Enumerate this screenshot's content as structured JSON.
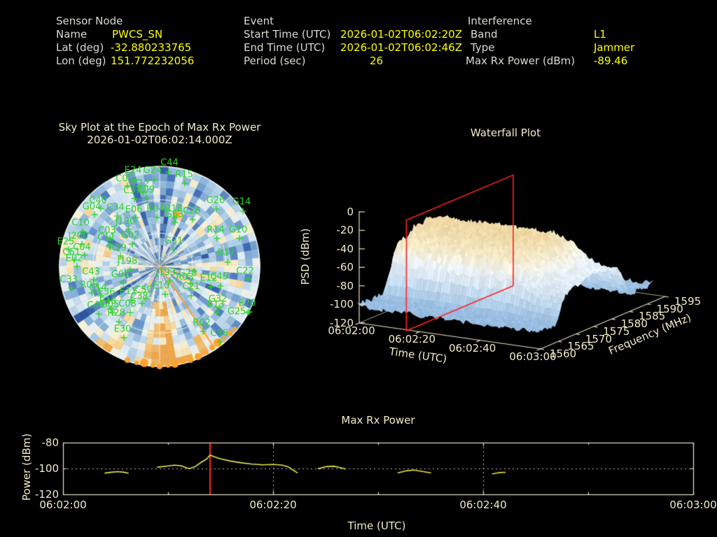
{
  "header": {
    "sensor": {
      "title": "Sensor Node",
      "rows": [
        {
          "label": "Name",
          "value": "PWCS_SN"
        },
        {
          "label": "Lat (deg)",
          "value": "-32.880233765"
        },
        {
          "label": "Lon (deg)",
          "value": "151.772232056"
        }
      ]
    },
    "event": {
      "title": "Event",
      "rows": [
        {
          "label": "Start Time (UTC)",
          "value": "2026-01-02T06:02:20Z"
        },
        {
          "label": "End Time (UTC)",
          "value": "2026-01-02T06:02:46Z"
        },
        {
          "label": "Period (sec)",
          "value": "26"
        }
      ]
    },
    "interference": {
      "title": "Interference",
      "rows": [
        {
          "label": "Band",
          "value": "L1"
        },
        {
          "label": "Type",
          "value": "Jammer"
        },
        {
          "label": "Max Rx Power (dBm)",
          "value": "-89.46"
        }
      ]
    }
  },
  "colors": {
    "background": "#000000",
    "header_label": "#dcdad0",
    "value_yellow": "#ffff00",
    "cream_text": "#f1ecca",
    "satellite_green": "#2ed32e",
    "orange_marker": "#ffa32a",
    "bearing_orange": "#f5a030",
    "event_red": "#ff2222",
    "trace_yellow": "#e6e64c",
    "grid_dotted": "#d8d8d8",
    "frame_cream": "#e9e5c9",
    "sky_palette": [
      [
        0,
        "#2f55a0"
      ],
      [
        0.12,
        "#4470b8"
      ],
      [
        0.25,
        "#6f9ccd"
      ],
      [
        0.38,
        "#9abfe0"
      ],
      [
        0.5,
        "#c6dcee"
      ],
      [
        0.6,
        "#e3eef5"
      ],
      [
        0.7,
        "#f6f0d8"
      ],
      [
        0.8,
        "#f6e0ac"
      ],
      [
        0.9,
        "#f2c277"
      ],
      [
        1,
        "#eda74e"
      ]
    ],
    "waterfall_palette": [
      [
        0,
        "#7ca9d6"
      ],
      [
        0.18,
        "#97bde2"
      ],
      [
        0.32,
        "#b6d3ec"
      ],
      [
        0.46,
        "#d5e6f4"
      ],
      [
        0.58,
        "#e9f1f8"
      ],
      [
        0.68,
        "#f6f2e1"
      ],
      [
        0.78,
        "#f3e5bd"
      ],
      [
        0.9,
        "#eed5a0"
      ],
      [
        1,
        "#e9cc90"
      ]
    ]
  },
  "render_seed": 7,
  "chart_data": [
    {
      "id": "sky",
      "type": "polar-scatter",
      "title_line1": "Sky Plot at the Epoch of Max Rx Power",
      "title_line2": "2026-01-02T06:02:14.000Z",
      "center": [
        228,
        381
      ],
      "radius": 143,
      "elevation_rings_deg": [
        30,
        60
      ],
      "satellites": [
        [
          "C44",
          242,
          233,
          241,
          246
        ],
        [
          "E24",
          190,
          244,
          194,
          257
        ],
        [
          "G24",
          218,
          244,
          220,
          257
        ],
        [
          "R15",
          263,
          250,
          264,
          262
        ],
        [
          "C05",
          178,
          256,
          182,
          266
        ],
        [
          "C12",
          201,
          263,
          204,
          275
        ],
        [
          "C37",
          189,
          273,
          192,
          284
        ],
        [
          "R09",
          208,
          272,
          210,
          283
        ],
        [
          "C40",
          140,
          287,
          144,
          298
        ],
        [
          "G04",
          131,
          296,
          135,
          307
        ],
        [
          "C34",
          165,
          297,
          168,
          309
        ],
        [
          "E06",
          191,
          300,
          194,
          311
        ],
        [
          "R04",
          222,
          299,
          224,
          311
        ],
        [
          "R18",
          248,
          299,
          249,
          311
        ],
        [
          "C26",
          274,
          302,
          275,
          314
        ],
        [
          "G26",
          308,
          287,
          309,
          299
        ],
        [
          "G14",
          345,
          289,
          347,
          302
        ],
        [
          "G63",
          249,
          307,
          250,
          318
        ],
        [
          "C10",
          115,
          319,
          118,
          331
        ],
        [
          "J190",
          179,
          317,
          184,
          328
        ],
        [
          "C03",
          153,
          330,
          157,
          341
        ],
        [
          "C11",
          152,
          340,
          156,
          351
        ],
        [
          "G02",
          186,
          337,
          189,
          349
        ],
        [
          "R14",
          308,
          329,
          310,
          341
        ],
        [
          "G10",
          340,
          329,
          342,
          341
        ],
        [
          "J200",
          112,
          338,
          117,
          349
        ],
        [
          "E25",
          94,
          346,
          98,
          357
        ],
        [
          "C04",
          117,
          354,
          121,
          365
        ],
        [
          "R19",
          168,
          355,
          172,
          366
        ],
        [
          "G31",
          248,
          345,
          248,
          357
        ],
        [
          "C61",
          102,
          361,
          106,
          372
        ],
        [
          "E02",
          106,
          370,
          110,
          381
        ],
        [
          "R17",
          323,
          362,
          325,
          375
        ],
        [
          "J198",
          182,
          374,
          186,
          386
        ],
        [
          "C22",
          350,
          388,
          354,
          399
        ],
        [
          "C43",
          130,
          389,
          134,
          400
        ],
        [
          "G01",
          172,
          393,
          176,
          405
        ],
        [
          "C33",
          98,
          400,
          102,
          412
        ],
        [
          "R05",
          127,
          408,
          131,
          419
        ],
        [
          "C14",
          140,
          412,
          144,
          423
        ],
        [
          "J193",
          237,
          390,
          242,
          402
        ],
        [
          "G28",
          268,
          391,
          277,
          388
        ],
        [
          "R03",
          264,
          397,
          272,
          406
        ],
        [
          "E12",
          298,
          398,
          301,
          410
        ],
        [
          "C45",
          313,
          396,
          315,
          409
        ],
        [
          "E10",
          230,
          409,
          236,
          421
        ],
        [
          "C21",
          273,
          410,
          273,
          423
        ],
        [
          "C50",
          205,
          415,
          208,
          427
        ],
        [
          "E11",
          183,
          417,
          187,
          429
        ],
        [
          "C38",
          199,
          424,
          203,
          434
        ],
        [
          "E36",
          152,
          418,
          156,
          430
        ],
        [
          "E18",
          154,
          431,
          158,
          441
        ],
        [
          "C49",
          137,
          437,
          141,
          449
        ],
        [
          "G05",
          157,
          436,
          161,
          447
        ],
        [
          "C08",
          182,
          435,
          186,
          447
        ],
        [
          "R28",
          166,
          448,
          170,
          460
        ],
        [
          "G32",
          311,
          428,
          313,
          440
        ],
        [
          "R13",
          308,
          436,
          310,
          447
        ],
        [
          "E20",
          353,
          434,
          356,
          446
        ],
        [
          "G25",
          338,
          446,
          354,
          447
        ],
        [
          "E30",
          175,
          471,
          177,
          483
        ],
        [
          "R02",
          288,
          462,
          290,
          474
        ],
        [
          "C36",
          313,
          477,
          314,
          489
        ]
      ],
      "horizon_dots": [
        [
          182,
          515,
          4
        ],
        [
          195,
          519,
          3
        ],
        [
          206,
          519,
          6
        ],
        [
          218,
          523,
          3
        ],
        [
          228,
          524,
          4
        ],
        [
          240,
          523,
          3
        ],
        [
          250,
          521,
          5
        ],
        [
          262,
          518,
          3
        ],
        [
          272,
          515,
          4
        ],
        [
          283,
          510,
          5
        ],
        [
          294,
          504,
          3
        ],
        [
          303,
          497,
          4
        ],
        [
          311,
          490,
          6
        ],
        [
          320,
          484,
          3
        ],
        [
          328,
          477,
          4
        ],
        [
          335,
          470,
          3
        ]
      ],
      "peak_dot": [
        252,
        306,
        5
      ],
      "bearing_line": {
        "from": [
          228,
          381
        ],
        "to": [
          306,
          497
        ]
      }
    },
    {
      "id": "waterfall",
      "type": "surface",
      "title": "Waterfall Plot",
      "xlabel": "Time (UTC)",
      "ylabel": "PSD (dBm)",
      "y2label": "Frequency (MHz)",
      "time_ticks": [
        {
          "label": "06:02:00",
          "s": 0
        },
        {
          "label": "06:02:20",
          "s": 20
        },
        {
          "label": "06:02:40",
          "s": 40
        },
        {
          "label": "06:03:00",
          "s": 60
        }
      ],
      "freq_ticks_mhz": [
        1560,
        1565,
        1570,
        1575,
        1580,
        1585,
        1590,
        1595
      ],
      "psd_ticks_dbm": [
        0,
        -20,
        -40,
        -60,
        -80,
        -100,
        -120
      ],
      "time_range_s": [
        0,
        60
      ],
      "freq_range_mhz": [
        1559.5,
        1591.5
      ],
      "psd_range_dbm": [
        -120,
        0
      ],
      "noise_floor_dbm": -103,
      "jammer_band_mhz": [
        1566,
        1584
      ],
      "jammer_peak_psd_dbm": -25,
      "event_slice_utc": "2026-01-02T06:02:14.000Z",
      "event_slice_s": 14
    },
    {
      "id": "power",
      "type": "line",
      "title": "Max Rx Power",
      "xlabel": "Time (UTC)",
      "ylabel": "Power (dBm)",
      "ylim": [
        -120,
        -80
      ],
      "y_ticks": [
        -80,
        -100,
        -120
      ],
      "x_ticks": [
        {
          "label": "06:02:00",
          "s": 0
        },
        {
          "label": "06:02:20",
          "s": 20
        },
        {
          "label": "06:02:40",
          "s": 40
        },
        {
          "label": "06:03:00",
          "s": 60
        }
      ],
      "minor_x_s": [
        10,
        30,
        50
      ],
      "grid_x_s": [
        20,
        40
      ],
      "grid_y_dbm": [
        -80,
        -100
      ],
      "epoch_line_s": 14,
      "max_rx_power_dbm": -89.46,
      "segments": [
        [
          [
            4.0,
            -103.6
          ],
          [
            4.6,
            -102.9
          ],
          [
            5.2,
            -102.4
          ],
          [
            5.8,
            -102.9
          ],
          [
            6.2,
            -103.7
          ]
        ],
        [
          [
            9.0,
            -99.0
          ],
          [
            9.8,
            -98.2
          ],
          [
            10.6,
            -97.4
          ],
          [
            11.2,
            -97.8
          ],
          [
            12.0,
            -100.1
          ],
          [
            12.6,
            -98.5
          ],
          [
            13.2,
            -95.0
          ],
          [
            13.7,
            -92.6
          ],
          [
            14.0,
            -89.6
          ],
          [
            14.4,
            -91.0
          ],
          [
            15.0,
            -92.6
          ],
          [
            16.0,
            -94.4
          ],
          [
            17.0,
            -95.6
          ],
          [
            18.0,
            -96.6
          ],
          [
            19.0,
            -97.2
          ],
          [
            20.0,
            -96.9
          ],
          [
            20.8,
            -97.3
          ],
          [
            21.4,
            -98.6
          ],
          [
            21.9,
            -101.2
          ],
          [
            22.3,
            -103.3
          ]
        ],
        [
          [
            24.3,
            -100.2
          ],
          [
            25.0,
            -98.6
          ],
          [
            25.8,
            -98.3
          ],
          [
            26.4,
            -99.3
          ],
          [
            26.9,
            -100.4
          ]
        ],
        [
          [
            31.9,
            -103.4
          ],
          [
            32.7,
            -101.8
          ],
          [
            33.4,
            -101.2
          ],
          [
            34.2,
            -102.3
          ],
          [
            35.0,
            -103.4
          ]
        ],
        [
          [
            40.9,
            -104.2
          ],
          [
            41.5,
            -103.2
          ],
          [
            42.1,
            -103.0
          ]
        ]
      ]
    }
  ]
}
